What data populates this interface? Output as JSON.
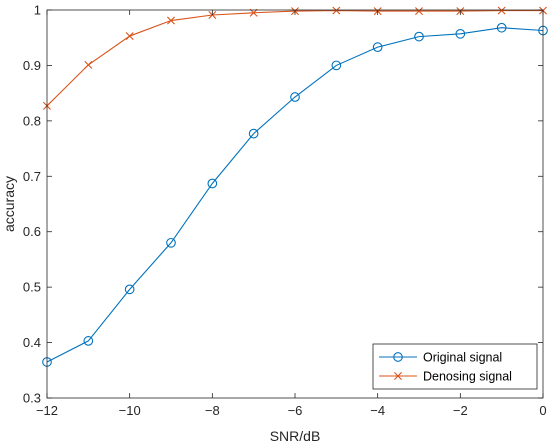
{
  "chart_data": {
    "type": "line",
    "xlabel": "SNR/dB",
    "ylabel": "accuracy",
    "xlim": [
      -12,
      0
    ],
    "ylim": [
      0.3,
      1
    ],
    "xticks": [
      -12,
      -10,
      -8,
      -6,
      -4,
      -2,
      0
    ],
    "yticks": [
      0.3,
      0.4,
      0.5,
      0.6,
      0.7,
      0.8,
      0.9,
      1
    ],
    "xtick_labels": [
      "−12",
      "−10",
      "−8",
      "−6",
      "−4",
      "−2",
      "0"
    ],
    "ytick_labels": [
      "0.3",
      "0.4",
      "0.5",
      "0.6",
      "0.7",
      "0.8",
      "0.9",
      "1"
    ],
    "x": [
      -12,
      -11,
      -10,
      -9,
      -8,
      -7,
      -6,
      -5,
      -4,
      -3,
      -2,
      -1,
      0
    ],
    "grid": false,
    "legend_position": "bottom-right",
    "series": [
      {
        "name": "Original signal",
        "color": "#0072BD",
        "marker": "circle",
        "values": [
          0.365,
          0.403,
          0.496,
          0.58,
          0.687,
          0.777,
          0.843,
          0.9,
          0.933,
          0.952,
          0.957,
          0.968,
          0.963
        ]
      },
      {
        "name": "Denosing signal",
        "color": "#D95319",
        "marker": "x",
        "values": [
          0.827,
          0.901,
          0.953,
          0.981,
          0.991,
          0.995,
          0.998,
          0.999,
          0.998,
          0.998,
          0.998,
          0.999,
          0.999
        ]
      }
    ]
  }
}
